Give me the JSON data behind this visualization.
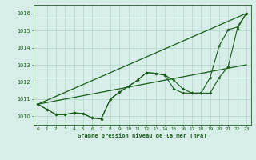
{
  "bg_color": "#d6ede8",
  "grid_color": "#b8d8d0",
  "line_color": "#1a5c1a",
  "text_color": "#1a5c1a",
  "xlabel": "Graphe pression niveau de la mer (hPa)",
  "ylim": [
    1009.5,
    1016.5
  ],
  "xlim": [
    -0.5,
    23.5
  ],
  "yticks": [
    1010,
    1011,
    1012,
    1013,
    1014,
    1015,
    1016
  ],
  "xticks": [
    0,
    1,
    2,
    3,
    4,
    5,
    6,
    7,
    8,
    9,
    10,
    11,
    12,
    13,
    14,
    15,
    16,
    17,
    18,
    19,
    20,
    21,
    22,
    23
  ],
  "series1": [
    1010.7,
    1010.4,
    1010.1,
    1010.1,
    1010.2,
    1010.15,
    1009.9,
    1009.85,
    1011.0,
    1011.4,
    1011.75,
    1012.1,
    1012.55,
    1012.5,
    1012.4,
    1012.1,
    1011.6,
    1011.35,
    1011.35,
    1011.35,
    1012.25,
    1012.9,
    1015.1,
    1016.0
  ],
  "series2": [
    1010.7,
    1010.4,
    1010.1,
    1010.1,
    1010.2,
    1010.15,
    1009.9,
    1009.85,
    1011.0,
    1011.4,
    1011.75,
    1012.1,
    1012.55,
    1012.5,
    1012.4,
    1011.6,
    1011.35,
    1011.35,
    1011.35,
    1012.25,
    1014.1,
    1015.05,
    1015.2,
    1016.0
  ],
  "trend1_x": [
    0,
    23
  ],
  "trend1_y": [
    1010.7,
    1016.0
  ],
  "trend2_x": [
    0,
    23
  ],
  "trend2_y": [
    1010.7,
    1013.0
  ]
}
